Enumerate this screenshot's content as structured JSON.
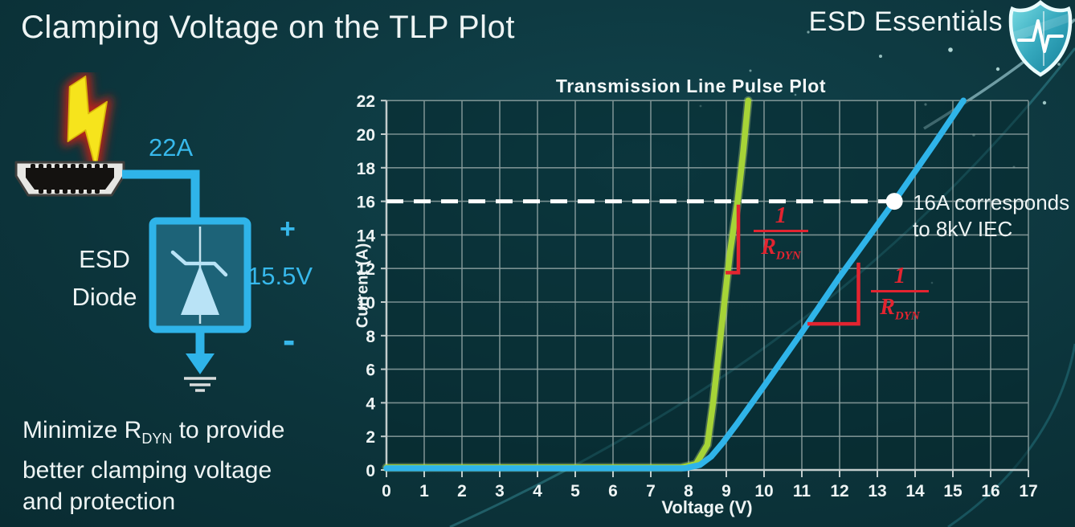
{
  "header": {
    "title": "Clamping Voltage on the TLP Plot",
    "brand": "ESD Essentials"
  },
  "diagram": {
    "surge_label": "22A",
    "device_line1": "ESD",
    "device_line2": "Diode",
    "polarity_plus": "+",
    "clamp_voltage": "15.5V",
    "polarity_minus": "-",
    "wire_color": "#2fb4e9"
  },
  "note": {
    "line1_prefix": "Minimize R",
    "line1_sub": "DYN",
    "line1_suffix": " to provide",
    "line2": "better clamping voltage",
    "line3": "and protection"
  },
  "chart_data": {
    "type": "line",
    "title": "Transmission Line Pulse Plot",
    "xlabel": "Voltage (V)",
    "ylabel": "Current (A)",
    "xlim": [
      0,
      17
    ],
    "ylim": [
      0,
      22
    ],
    "x_ticks": [
      0,
      1,
      2,
      3,
      4,
      5,
      6,
      7,
      8,
      9,
      10,
      11,
      12,
      13,
      14,
      15,
      16,
      17
    ],
    "y_ticks": [
      0,
      2,
      4,
      6,
      8,
      10,
      12,
      14,
      16,
      18,
      20,
      22
    ],
    "grid": true,
    "legend_position": "none",
    "series": [
      {
        "name": "low-rdyn-esd-diode",
        "color": "#a6d437",
        "points": [
          [
            0,
            0.15
          ],
          [
            7.8,
            0.15
          ],
          [
            8.2,
            0.35
          ],
          [
            8.5,
            1.5
          ],
          [
            8.65,
            4
          ],
          [
            8.8,
            7
          ],
          [
            8.95,
            10
          ],
          [
            9.1,
            13
          ],
          [
            9.3,
            16
          ],
          [
            9.45,
            19
          ],
          [
            9.58,
            22
          ]
        ]
      },
      {
        "name": "higher-rdyn-esd-diode",
        "color": "#2fb4e9",
        "points": [
          [
            0,
            0.1
          ],
          [
            7.9,
            0.1
          ],
          [
            8.3,
            0.3
          ],
          [
            8.6,
            0.8
          ],
          [
            8.9,
            1.6
          ],
          [
            9.3,
            2.8
          ],
          [
            10,
            5.0
          ],
          [
            11,
            8.2
          ],
          [
            12,
            11.5
          ],
          [
            13,
            14.6
          ],
          [
            13.45,
            16
          ],
          [
            14.5,
            19.4
          ],
          [
            15.28,
            22
          ]
        ]
      }
    ],
    "reference_line": {
      "y": 16,
      "style": "dashed",
      "color": "#ffffff",
      "x_start": 0,
      "x_end": 13.45
    },
    "marker_point": {
      "x": 13.45,
      "y": 16,
      "color": "#ffffff"
    },
    "slope_markers": [
      {
        "x": 9.32,
        "y_top": 15.8,
        "y_bottom": 11.75,
        "foot_x": 8.98
      },
      {
        "x": 12.5,
        "y_top": 12.35,
        "y_bottom": 8.7,
        "foot_x": 11.15
      }
    ],
    "annotations": {
      "marker_text_line1": "16A corresponds",
      "marker_text_line2": "to 8kV IEC",
      "slope_num": "1",
      "slope_den_base": "R",
      "slope_den_sub": "DYN",
      "slope_color": "#e32430"
    },
    "axis_color": "#c3cdcd",
    "grid_color": "#8da0a0",
    "tick_label_color": "#eef4f4"
  }
}
